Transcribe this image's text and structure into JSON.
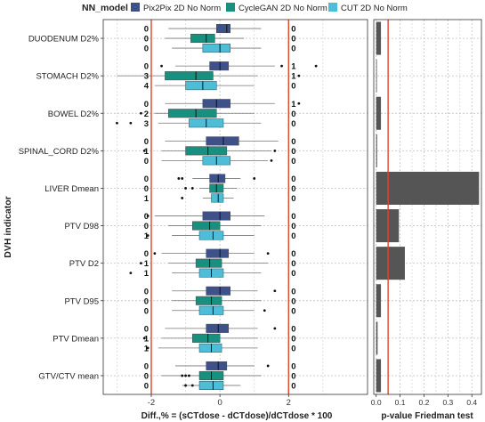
{
  "legend": {
    "title": "NN_model",
    "placement": "top",
    "entries": [
      {
        "name": "Pix2Pix 2D No Norm",
        "color": "#3E5188"
      },
      {
        "name": "CycleGAN 2D No Norm",
        "color": "#17907F"
      },
      {
        "name": "CUT 2D No Norm",
        "color": "#4DBDD8"
      }
    ]
  },
  "chart_data": [
    {
      "type": "boxplot",
      "orientation": "horizontal",
      "xlabel": "Diff.,% = (sCTdose - dCTdose)/dCTdose * 100",
      "ylabel": "DVH indicator",
      "xlim": [
        -3.4,
        4.3
      ],
      "xticks": [
        -2,
        0,
        2
      ],
      "grid": true,
      "reference_lines": [
        {
          "x": -2,
          "color": "#E0452B"
        },
        {
          "x": 2,
          "color": "#E0452B"
        }
      ],
      "categories": [
        "DUODENUM D2%",
        "STOMACH D2%",
        "BOWEL D2%",
        "SPINAL_CORD D2%",
        "LIVER Dmean",
        "PTV D98",
        "PTV D2",
        "PTV D95",
        "PTV Dmean",
        "GTV/CTV mean"
      ],
      "series": [
        {
          "name": "Pix2Pix 2D No Norm",
          "color": "#3E5188",
          "boxes": [
            {
              "whisker_low": -1.5,
              "q1": -0.1,
              "median": 0.2,
              "q3": 0.3,
              "whisker_high": 1.2,
              "outliers": [],
              "count_left": "0",
              "count_right": "0"
            },
            {
              "whisker_low": -1.3,
              "q1": -0.3,
              "median": 0.0,
              "q3": 0.25,
              "whisker_high": 1.6,
              "outliers": [
                -1.7,
                1.8,
                2.8
              ],
              "count_left": "0",
              "count_right": "1"
            },
            {
              "whisker_low": -1.6,
              "q1": -0.5,
              "median": -0.1,
              "q3": 0.3,
              "whisker_high": 1.6,
              "outliers": [
                2.3
              ],
              "count_left": "0",
              "count_right": "1"
            },
            {
              "whisker_low": -1.6,
              "q1": -0.4,
              "median": 0.1,
              "q3": 0.55,
              "whisker_high": 1.7,
              "outliers": [],
              "count_left": "0",
              "count_right": "0"
            },
            {
              "whisker_low": -0.8,
              "q1": -0.3,
              "median": -0.05,
              "q3": 0.15,
              "whisker_high": 0.6,
              "outliers": [
                -1.2,
                -1.1,
                1.0
              ],
              "count_left": "0",
              "count_right": "0"
            },
            {
              "whisker_low": -1.9,
              "q1": -0.5,
              "median": 0.0,
              "q3": 0.3,
              "whisker_high": 1.3,
              "outliers": [
                -2.1
              ],
              "count_left": "0",
              "count_right": "0"
            },
            {
              "whisker_low": -1.7,
              "q1": -0.4,
              "median": 0.0,
              "q3": 0.25,
              "whisker_high": 1.0,
              "outliers": [
                -1.9,
                1.4
              ],
              "count_left": "0",
              "count_right": "0"
            },
            {
              "whisker_low": -1.4,
              "q1": -0.4,
              "median": 0.0,
              "q3": 0.3,
              "whisker_high": 1.1,
              "outliers": [
                1.6
              ],
              "count_left": "0",
              "count_right": "0"
            },
            {
              "whisker_low": -1.6,
              "q1": -0.4,
              "median": -0.05,
              "q3": 0.25,
              "whisker_high": 1.1,
              "outliers": [
                1.6
              ],
              "count_left": "0",
              "count_right": "0"
            },
            {
              "whisker_low": -1.3,
              "q1": -0.4,
              "median": -0.05,
              "q3": 0.2,
              "whisker_high": 1.0,
              "outliers": [
                1.4
              ],
              "count_left": "0",
              "count_right": "0"
            }
          ]
        },
        {
          "name": "CycleGAN 2D No Norm",
          "color": "#17907F",
          "boxes": [
            {
              "whisker_low": -1.6,
              "q1": -0.85,
              "median": -0.4,
              "q3": -0.15,
              "whisker_high": 0.7,
              "outliers": [],
              "count_left": "0",
              "count_right": "0"
            },
            {
              "whisker_low": -3.0,
              "q1": -1.6,
              "median": -0.7,
              "q3": -0.2,
              "whisker_high": 1.1,
              "outliers": [
                2.3
              ],
              "count_left": "3",
              "count_right": "1"
            },
            {
              "whisker_low": -1.9,
              "q1": -1.5,
              "median": -0.7,
              "q3": -0.1,
              "whisker_high": 1.0,
              "outliers": [
                -2.3
              ],
              "count_left": "2",
              "count_right": "0"
            },
            {
              "whisker_low": -1.7,
              "q1": -1.0,
              "median": -0.35,
              "q3": 0.2,
              "whisker_high": 1.5,
              "outliers": [
                -2.2,
                1.6
              ],
              "count_left": "1",
              "count_right": "0"
            },
            {
              "whisker_low": -0.6,
              "q1": -0.3,
              "median": -0.1,
              "q3": 0.1,
              "whisker_high": 0.5,
              "outliers": [
                -1.0,
                -0.8
              ],
              "count_left": "0",
              "count_right": "0"
            },
            {
              "whisker_low": -1.5,
              "q1": -0.8,
              "median": -0.3,
              "q3": 0.0,
              "whisker_high": 1.2,
              "outliers": [],
              "count_left": "0",
              "count_right": "0"
            },
            {
              "whisker_low": -1.5,
              "q1": -0.7,
              "median": -0.3,
              "q3": 0.05,
              "whisker_high": 1.4,
              "outliers": [
                -2.3
              ],
              "count_left": "1",
              "count_right": "0"
            },
            {
              "whisker_low": -1.4,
              "q1": -0.7,
              "median": -0.25,
              "q3": 0.05,
              "whisker_high": 1.2,
              "outliers": [],
              "count_left": "0",
              "count_right": "0"
            },
            {
              "whisker_low": -1.7,
              "q1": -0.8,
              "median": -0.35,
              "q3": 0.0,
              "whisker_high": 1.1,
              "outliers": [
                -2.2
              ],
              "count_left": "1",
              "count_right": "0"
            },
            {
              "whisker_low": -1.7,
              "q1": -0.6,
              "median": -0.25,
              "q3": 0.1,
              "whisker_high": 1.2,
              "outliers": [
                -1.1,
                -1.0,
                -0.9
              ],
              "count_left": "0",
              "count_right": "0"
            }
          ]
        },
        {
          "name": "CUT 2D No Norm",
          "color": "#4DBDD8",
          "boxes": [
            {
              "whisker_low": -1.4,
              "q1": -0.5,
              "median": 0.0,
              "q3": 0.3,
              "whisker_high": 1.2,
              "outliers": [],
              "count_left": "0",
              "count_right": "0"
            },
            {
              "whisker_low": -1.9,
              "q1": -1.0,
              "median": -0.5,
              "q3": -0.1,
              "whisker_high": 1.0,
              "outliers": [],
              "count_left": "4",
              "count_right": "0"
            },
            {
              "whisker_low": -1.8,
              "q1": -0.9,
              "median": -0.4,
              "q3": 0.1,
              "whisker_high": 1.2,
              "outliers": [
                -3.0,
                -2.6
              ],
              "count_left": "3",
              "count_right": "0"
            },
            {
              "whisker_low": -1.7,
              "q1": -0.5,
              "median": -0.1,
              "q3": 0.3,
              "whisker_high": 1.4,
              "outliers": [
                1.5
              ],
              "count_left": "0",
              "count_right": "0"
            },
            {
              "whisker_low": -0.5,
              "q1": -0.25,
              "median": -0.05,
              "q3": 0.1,
              "whisker_high": 0.4,
              "outliers": [
                -1.1
              ],
              "count_left": "1",
              "count_right": "0"
            },
            {
              "whisker_low": -1.4,
              "q1": -0.6,
              "median": -0.2,
              "q3": 0.1,
              "whisker_high": 1.0,
              "outliers": [
                -2.1
              ],
              "count_left": "1",
              "count_right": "0"
            },
            {
              "whisker_low": -1.4,
              "q1": -0.6,
              "median": -0.25,
              "q3": 0.1,
              "whisker_high": 1.2,
              "outliers": [
                -2.6
              ],
              "count_left": "1",
              "count_right": "0"
            },
            {
              "whisker_low": -1.4,
              "q1": -0.6,
              "median": -0.2,
              "q3": 0.1,
              "whisker_high": 1.0,
              "outliers": [
                1.3
              ],
              "count_left": "0",
              "count_right": "0"
            },
            {
              "whisker_low": -1.8,
              "q1": -0.6,
              "median": -0.25,
              "q3": 0.05,
              "whisker_high": 1.1,
              "outliers": [
                -2.1
              ],
              "count_left": "1",
              "count_right": "0"
            },
            {
              "whisker_low": -1.1,
              "q1": -0.6,
              "median": -0.2,
              "q3": 0.1,
              "whisker_high": 0.6,
              "outliers": [
                -1.0,
                -0.8
              ],
              "count_left": "0",
              "count_right": "0"
            }
          ]
        }
      ]
    },
    {
      "type": "bar",
      "orientation": "horizontal",
      "xlabel": "p-value Friedman test",
      "xlim": [
        -0.01,
        0.44
      ],
      "xticks": [
        "0.0",
        "0.1",
        "0.2",
        "0.3",
        "0.4"
      ],
      "grid": true,
      "reference_lines": [
        {
          "x": 0.05,
          "color": "#E0452B"
        }
      ],
      "bar_color": "#555555",
      "categories": [
        "DUODENUM D2%",
        "STOMACH D2%",
        "BOWEL D2%",
        "SPINAL_CORD D2%",
        "LIVER Dmean",
        "PTV D98",
        "PTV D2",
        "PTV D95",
        "PTV Dmean",
        "GTV/CTV mean"
      ],
      "values": [
        0.02,
        0.003,
        0.02,
        0.004,
        0.43,
        0.095,
        0.12,
        0.02,
        0.006,
        0.02
      ]
    }
  ]
}
